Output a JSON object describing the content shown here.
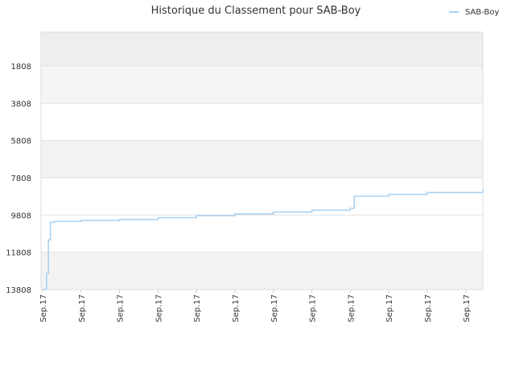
{
  "chart_data": {
    "type": "line",
    "title": "Historique du Classement pour SAB-Boy",
    "xlabel": "",
    "ylabel": "",
    "y_inverted": true,
    "ylim": [
      13808,
      0
    ],
    "yticks": [
      1808,
      3808,
      5808,
      7808,
      9808,
      11808,
      13808
    ],
    "xticks": [
      "Sep.17",
      "Sep.17",
      "Sep.17",
      "Sep.17",
      "Sep.17",
      "Sep.17",
      "Sep.17",
      "Sep.17",
      "Sep.17",
      "Sep.17",
      "Sep.17",
      "Sep.17"
    ],
    "legend_position": "top-right",
    "grid": true,
    "series": [
      {
        "name": "SAB-Boy",
        "color": "#a8d0f0",
        "x_positions": [
          0,
          0.1,
          0.15,
          0.2,
          0.3,
          0.5,
          1,
          2,
          3,
          4,
          5,
          6,
          7,
          8,
          8.1,
          9,
          10,
          11.5
        ],
        "values": [
          13800,
          12950,
          11150,
          10200,
          10150,
          10150,
          10100,
          10050,
          9950,
          9850,
          9750,
          9650,
          9550,
          9450,
          8800,
          8700,
          8600,
          8450
        ]
      }
    ],
    "bands": [
      "#eeeeee",
      "#f5f5f5",
      "#ffffff",
      "#f3f3f3",
      "#ffffff",
      "#ffffff",
      "#f3f3f3"
    ]
  }
}
